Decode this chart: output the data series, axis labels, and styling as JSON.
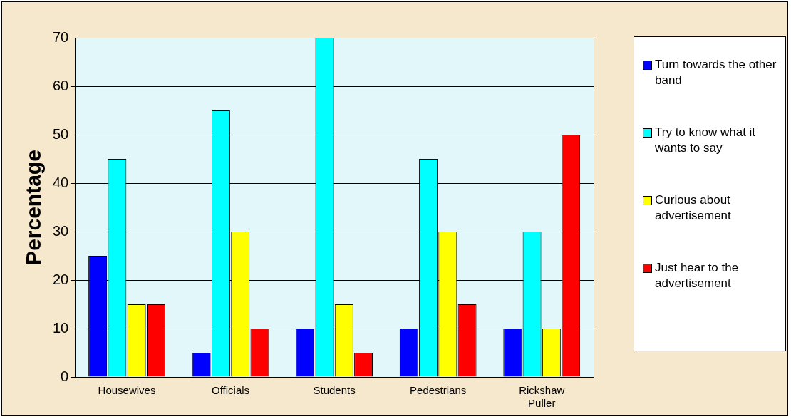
{
  "chart_data": {
    "type": "bar",
    "ylabel": "Percentage",
    "categories": [
      "Housewives",
      "Officials",
      "Students",
      "Pedestrians",
      "Rickshaw Puller"
    ],
    "series": [
      {
        "name": "Turn towards the other band",
        "color": "#0000ff",
        "values": [
          25,
          5,
          10,
          10,
          10
        ]
      },
      {
        "name": "Try to know what it wants to say",
        "color": "#00ffff",
        "values": [
          45,
          55,
          70,
          45,
          30
        ]
      },
      {
        "name": "Curious about advertisement",
        "color": "#ffff00",
        "values": [
          15,
          30,
          15,
          30,
          10
        ]
      },
      {
        "name": "Just hear to the advertisement",
        "color": "#ff0000",
        "values": [
          15,
          10,
          5,
          15,
          50
        ]
      }
    ],
    "ylim": [
      0,
      70
    ],
    "yticks": [
      0,
      10,
      20,
      30,
      40,
      50,
      60,
      70
    ],
    "grid": "y",
    "legend": "right"
  }
}
